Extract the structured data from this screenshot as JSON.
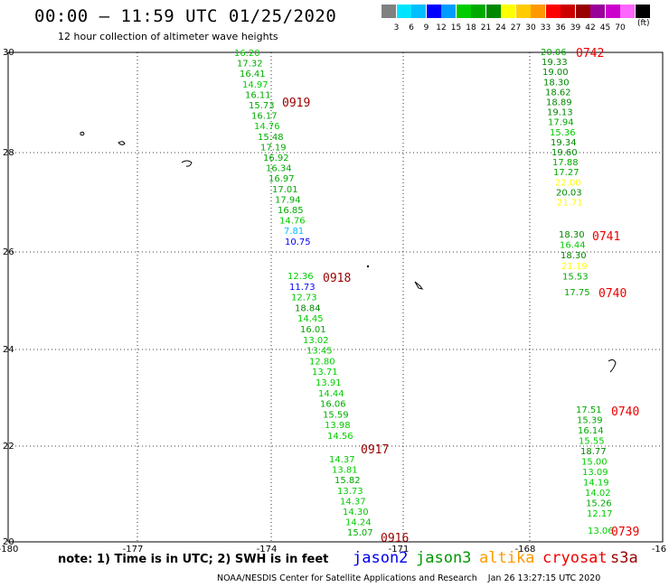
{
  "header": {
    "title": "00:00 – 11:59 UTC 01/25/2020",
    "subtitle": "12 hour collection of altimeter wave heights"
  },
  "colorbar": {
    "unit": "(ft)",
    "colors": [
      "#808080",
      "#00e5ff",
      "#00bfff",
      "#0000ff",
      "#009cff",
      "#00cc00",
      "#00aa00",
      "#008800",
      "#ffff00",
      "#ffcc00",
      "#ff9900",
      "#ff0000",
      "#cc0000",
      "#990000",
      "#990099",
      "#cc00cc",
      "#ff66ff",
      "#000000"
    ],
    "labels": [
      "3",
      "6",
      "9",
      "12",
      "15",
      "18",
      "21",
      "24",
      "27",
      "30",
      "33",
      "36",
      "39",
      "42",
      "45",
      "70"
    ]
  },
  "axes": {
    "x_ticks": [
      "-180",
      "-177",
      "-174",
      "-171",
      "-168",
      "-16"
    ],
    "y_ticks": [
      "30",
      "28",
      "26",
      "24",
      "22",
      "20"
    ]
  },
  "tracks": [
    {
      "time": "0742",
      "points": [
        {
          "v": "20.06",
          "c": "#00aa00"
        },
        {
          "v": "19.33",
          "c": "#008800"
        },
        {
          "v": "19.00",
          "c": "#008800"
        },
        {
          "v": "18.30",
          "c": "#008800"
        },
        {
          "v": "18.62",
          "c": "#008800"
        },
        {
          "v": "18.89",
          "c": "#008800"
        },
        {
          "v": "19.13",
          "c": "#008800"
        },
        {
          "v": "17.94",
          "c": "#00aa00"
        },
        {
          "v": "15.36",
          "c": "#00cc00"
        },
        {
          "v": "19.34",
          "c": "#008800"
        },
        {
          "v": "19.60",
          "c": "#008800"
        },
        {
          "v": "17.88",
          "c": "#00aa00"
        },
        {
          "v": "17.27",
          "c": "#00aa00"
        },
        {
          "v": "22.00",
          "c": "#ffff00"
        },
        {
          "v": "20.03",
          "c": "#008800"
        },
        {
          "v": "21.71",
          "c": "#ffff00"
        }
      ]
    },
    {
      "time": "0741",
      "points": [
        {
          "v": "18.30",
          "c": "#008800"
        },
        {
          "v": "16.44",
          "c": "#00cc00"
        },
        {
          "v": "18.30",
          "c": "#008800"
        },
        {
          "v": "21.19",
          "c": "#ffff00"
        },
        {
          "v": "15.53",
          "c": "#00aa00"
        }
      ]
    },
    {
      "time": "0740",
      "points": [
        {
          "v": "17.75",
          "c": "#00aa00"
        }
      ]
    },
    {
      "time": "0740",
      "points": [
        {
          "v": "17.51",
          "c": "#00aa00"
        },
        {
          "v": "15.39",
          "c": "#00aa00"
        },
        {
          "v": "16.14",
          "c": "#00aa00"
        },
        {
          "v": "15.55",
          "c": "#00cc00"
        },
        {
          "v": "18.77",
          "c": "#008800"
        },
        {
          "v": "15.00",
          "c": "#00cc00"
        },
        {
          "v": "13.09",
          "c": "#00cc00"
        },
        {
          "v": "14.19",
          "c": "#00cc00"
        },
        {
          "v": "14.02",
          "c": "#00cc00"
        },
        {
          "v": "15.26",
          "c": "#00aa00"
        },
        {
          "v": "12.17",
          "c": "#00cc00"
        }
      ]
    },
    {
      "time": "0739",
      "points": [
        {
          "v": "13.06",
          "c": "#00cc00"
        }
      ]
    },
    {
      "time": "0919",
      "points": [
        {
          "v": "16.20",
          "c": "#00cc00"
        },
        {
          "v": "17.32",
          "c": "#00aa00"
        },
        {
          "v": "16.41",
          "c": "#00aa00"
        },
        {
          "v": "14.97",
          "c": "#00cc00"
        },
        {
          "v": "16.11",
          "c": "#00aa00"
        },
        {
          "v": "15.73",
          "c": "#00aa00"
        },
        {
          "v": "16.17",
          "c": "#00aa00"
        },
        {
          "v": "14.76",
          "c": "#00cc00"
        },
        {
          "v": "15.48",
          "c": "#00aa00"
        },
        {
          "v": "17.19",
          "c": "#00aa00"
        },
        {
          "v": "16.92",
          "c": "#00aa00"
        },
        {
          "v": "16.34",
          "c": "#00aa00"
        },
        {
          "v": "16.97",
          "c": "#00aa00"
        },
        {
          "v": "17.01",
          "c": "#00aa00"
        },
        {
          "v": "17.94",
          "c": "#00aa00"
        },
        {
          "v": "16.85",
          "c": "#00aa00"
        },
        {
          "v": "14.76",
          "c": "#00cc00"
        },
        {
          "v": "7.81",
          "c": "#00bfff"
        },
        {
          "v": "10.75",
          "c": "#0000ff"
        }
      ]
    },
    {
      "time": "0918",
      "points": [
        {
          "v": "12.36",
          "c": "#00cc00"
        },
        {
          "v": "11.73",
          "c": "#0000ff"
        },
        {
          "v": "12.73",
          "c": "#00cc00"
        },
        {
          "v": "18.84",
          "c": "#008800"
        },
        {
          "v": "14.45",
          "c": "#00cc00"
        },
        {
          "v": "16.01",
          "c": "#00aa00"
        },
        {
          "v": "13.02",
          "c": "#00cc00"
        },
        {
          "v": "13.45",
          "c": "#00cc00"
        },
        {
          "v": "12.80",
          "c": "#00cc00"
        },
        {
          "v": "13.71",
          "c": "#00cc00"
        },
        {
          "v": "13.91",
          "c": "#00cc00"
        },
        {
          "v": "14.44",
          "c": "#00cc00"
        },
        {
          "v": "16.06",
          "c": "#00aa00"
        },
        {
          "v": "15.59",
          "c": "#00aa00"
        },
        {
          "v": "13.98",
          "c": "#00cc00"
        },
        {
          "v": "14.56",
          "c": "#00cc00"
        }
      ]
    },
    {
      "time": "0917",
      "points": [
        {
          "v": "14.37",
          "c": "#00cc00"
        },
        {
          "v": "13.81",
          "c": "#00cc00"
        },
        {
          "v": "15.82",
          "c": "#00aa00"
        },
        {
          "v": "13.73",
          "c": "#00cc00"
        },
        {
          "v": "14.37",
          "c": "#00cc00"
        },
        {
          "v": "14.30",
          "c": "#00cc00"
        },
        {
          "v": "14.24",
          "c": "#00cc00"
        },
        {
          "v": "15.07",
          "c": "#00aa00"
        }
      ]
    },
    {
      "time": "0916",
      "points": []
    }
  ],
  "legend": {
    "note": "note: 1) Time is in UTC; 2) SWH is in feet",
    "satellites": [
      {
        "name": "jason2",
        "color": "#0000ee"
      },
      {
        "name": "jason3",
        "color": "#009900"
      },
      {
        "name": "altika",
        "color": "#ff9900"
      },
      {
        "name": "cryosat",
        "color": "#ee0000"
      },
      {
        "name": "s3a",
        "color": "#990000"
      }
    ]
  },
  "footer": "NOAA/NESDIS Center for Satellite Applications and Research    Jan 26 13:27:15 UTC 2020"
}
